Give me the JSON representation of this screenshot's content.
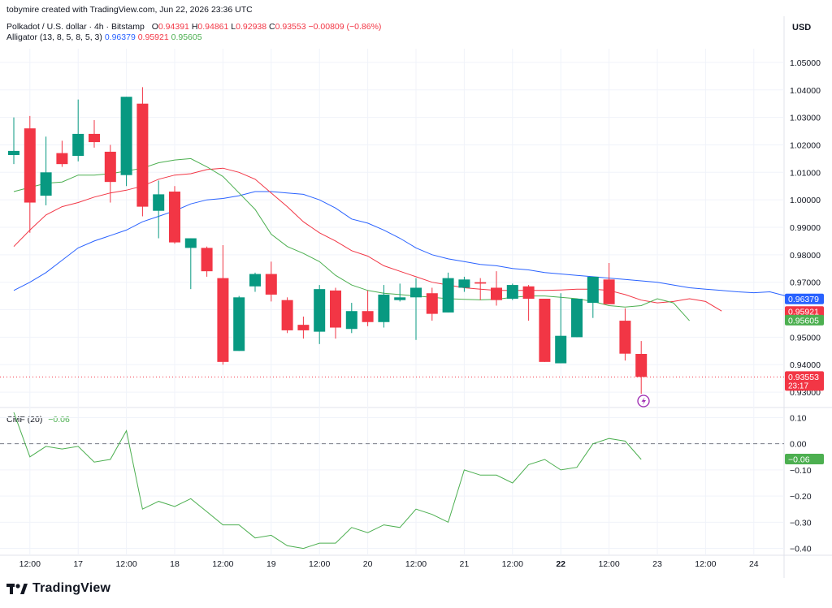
{
  "header": {
    "creator_line": "tobymire created with TradingView.com, Jun 22, 2026 23:36 UTC",
    "symbol_text": "Polkadot / U.S. dollar · 4h · Bitstamp",
    "ohlc": {
      "o_label": "O",
      "o": "0.94391",
      "h_label": "H",
      "h": "0.94861",
      "l_label": "L",
      "l": "0.92938",
      "c_label": "C",
      "c": "0.93553",
      "change": "−0.00809 (−0.86%)"
    },
    "alligator_label": "Alligator (13, 8, 5, 8, 5, 3)",
    "alligator_jaw": "0.96379",
    "alligator_teeth": "0.95921",
    "alligator_lips": "0.95605",
    "cmf_label": "CMF (20)",
    "cmf_value": "−0.06",
    "currency": "USD"
  },
  "brand": {
    "name": "TradingView"
  },
  "colors": {
    "up": "#089981",
    "down": "#f23645",
    "jaw": "#2962ff",
    "teeth": "#f23645",
    "lips": "#4caf50",
    "cmf": "#4caf50",
    "grid": "#f0f3fa",
    "text": "#131722"
  },
  "chart_data": [
    {
      "type": "candlestick",
      "title": "Polkadot / U.S. dollar · 4h · Bitstamp",
      "ylabel": "USD",
      "ylim": [
        0.925,
        1.055
      ],
      "y_ticks": [
        "1.05000",
        "1.04000",
        "1.03000",
        "1.02000",
        "1.01000",
        "1.00000",
        "0.99000",
        "0.98000",
        "0.97000",
        "0.96000",
        "0.95000",
        "0.94000",
        "0.93000"
      ],
      "x_ticks": [
        {
          "i": 1,
          "label": "12:00"
        },
        {
          "i": 4,
          "label": "17"
        },
        {
          "i": 7,
          "label": "12:00"
        },
        {
          "i": 10,
          "label": "18"
        },
        {
          "i": 13,
          "label": "12:00"
        },
        {
          "i": 16,
          "label": "19"
        },
        {
          "i": 19,
          "label": "12:00"
        },
        {
          "i": 22,
          "label": "20"
        },
        {
          "i": 25,
          "label": "12:00"
        },
        {
          "i": 28,
          "label": "21"
        },
        {
          "i": 31,
          "label": "12:00"
        },
        {
          "i": 34,
          "label": "22",
          "bold": true
        },
        {
          "i": 37,
          "label": "12:00"
        },
        {
          "i": 40,
          "label": "23"
        },
        {
          "i": 43,
          "label": "12:00"
        },
        {
          "i": 46,
          "label": "24"
        }
      ],
      "candles": [
        {
          "o": 1.0163,
          "h": 1.03,
          "l": 1.013,
          "c": 1.0178
        },
        {
          "o": 1.026,
          "h": 1.0305,
          "l": 0.988,
          "c": 0.999
        },
        {
          "o": 1.0015,
          "h": 1.023,
          "l": 0.998,
          "c": 1.01
        },
        {
          "o": 1.017,
          "h": 1.0215,
          "l": 1.012,
          "c": 1.013
        },
        {
          "o": 1.016,
          "h": 1.0365,
          "l": 1.014,
          "c": 1.024
        },
        {
          "o": 1.024,
          "h": 1.029,
          "l": 1.019,
          "c": 1.021
        },
        {
          "o": 1.0175,
          "h": 1.02,
          "l": 0.999,
          "c": 1.0065
        },
        {
          "o": 1.009,
          "h": 1.0375,
          "l": 1.005,
          "c": 1.0375
        },
        {
          "o": 1.035,
          "h": 1.041,
          "l": 0.994,
          "c": 0.9975
        },
        {
          "o": 0.996,
          "h": 1.007,
          "l": 0.986,
          "c": 1.002
        },
        {
          "o": 1.003,
          "h": 1.005,
          "l": 0.984,
          "c": 0.9845
        },
        {
          "o": 0.9825,
          "h": 0.986,
          "l": 0.9675,
          "c": 0.986
        },
        {
          "o": 0.9825,
          "h": 0.983,
          "l": 0.972,
          "c": 0.974
        },
        {
          "o": 0.9715,
          "h": 0.9835,
          "l": 0.94,
          "c": 0.941
        },
        {
          "o": 0.945,
          "h": 0.965,
          "l": 0.945,
          "c": 0.9645
        },
        {
          "o": 0.9685,
          "h": 0.9735,
          "l": 0.9665,
          "c": 0.973
        },
        {
          "o": 0.973,
          "h": 0.9775,
          "l": 0.963,
          "c": 0.9655
        },
        {
          "o": 0.9635,
          "h": 0.9645,
          "l": 0.9515,
          "c": 0.9525
        },
        {
          "o": 0.9545,
          "h": 0.9575,
          "l": 0.9495,
          "c": 0.9525
        },
        {
          "o": 0.952,
          "h": 0.969,
          "l": 0.9475,
          "c": 0.9675
        },
        {
          "o": 0.967,
          "h": 0.968,
          "l": 0.9495,
          "c": 0.9535
        },
        {
          "o": 0.953,
          "h": 0.9625,
          "l": 0.9515,
          "c": 0.9595
        },
        {
          "o": 0.9595,
          "h": 0.967,
          "l": 0.954,
          "c": 0.9555
        },
        {
          "o": 0.9555,
          "h": 0.969,
          "l": 0.9535,
          "c": 0.9655
        },
        {
          "o": 0.9635,
          "h": 0.9695,
          "l": 0.963,
          "c": 0.9645
        },
        {
          "o": 0.9645,
          "h": 0.9715,
          "l": 0.949,
          "c": 0.968
        },
        {
          "o": 0.966,
          "h": 0.968,
          "l": 0.956,
          "c": 0.9585
        },
        {
          "o": 0.959,
          "h": 0.9735,
          "l": 0.959,
          "c": 0.9715
        },
        {
          "o": 0.968,
          "h": 0.972,
          "l": 0.9665,
          "c": 0.971
        },
        {
          "o": 0.97,
          "h": 0.9715,
          "l": 0.9635,
          "c": 0.9695
        },
        {
          "o": 0.968,
          "h": 0.974,
          "l": 0.9615,
          "c": 0.9635
        },
        {
          "o": 0.964,
          "h": 0.9695,
          "l": 0.9635,
          "c": 0.969
        },
        {
          "o": 0.9685,
          "h": 0.969,
          "l": 0.956,
          "c": 0.964
        },
        {
          "o": 0.964,
          "h": 0.964,
          "l": 0.941,
          "c": 0.941
        },
        {
          "o": 0.9405,
          "h": 0.966,
          "l": 0.9405,
          "c": 0.9505
        },
        {
          "o": 0.95,
          "h": 0.964,
          "l": 0.95,
          "c": 0.964
        },
        {
          "o": 0.9625,
          "h": 0.972,
          "l": 0.957,
          "c": 0.972
        },
        {
          "o": 0.971,
          "h": 0.977,
          "l": 0.962,
          "c": 0.962
        },
        {
          "o": 0.956,
          "h": 0.9605,
          "l": 0.9415,
          "c": 0.944
        },
        {
          "o": 0.94391,
          "h": 0.94861,
          "l": 0.92938,
          "c": 0.93553
        }
      ],
      "alligator": {
        "jaw": {
          "name": "Jaw",
          "start": 0,
          "values": [
            0.967,
            0.97,
            0.9735,
            0.978,
            0.9825,
            0.985,
            0.987,
            0.989,
            0.992,
            0.994,
            0.996,
            0.9985,
            1.0,
            1.0005,
            1.0015,
            1.003,
            1.003,
            1.0025,
            1.002,
            1.0,
            0.997,
            0.993,
            0.9915,
            0.989,
            0.986,
            0.9825,
            0.98,
            0.9785,
            0.9775,
            0.9765,
            0.976,
            0.975,
            0.9745,
            0.9735,
            0.973,
            0.9725,
            0.972,
            0.9715,
            0.971,
            0.9705,
            0.97,
            0.969,
            0.968,
            0.9675,
            0.967,
            0.9665,
            0.9662,
            0.9665,
            0.965
          ]
        },
        "teeth": {
          "name": "Teeth",
          "start": 0,
          "values": [
            0.983,
            0.989,
            0.9945,
            0.9975,
            0.999,
            1.001,
            1.0025,
            1.0035,
            1.005,
            1.0075,
            1.009,
            1.0095,
            1.011,
            1.0115,
            1.01,
            1.0075,
            1.0025,
            0.9975,
            0.992,
            0.988,
            0.985,
            0.9815,
            0.9795,
            0.976,
            0.974,
            0.972,
            0.97,
            0.969,
            0.968,
            0.9675,
            0.967,
            0.967,
            0.967,
            0.967,
            0.9672,
            0.9675,
            0.9675,
            0.967,
            0.9655,
            0.9635,
            0.9625,
            0.963,
            0.964,
            0.963,
            0.9595
          ]
        },
        "lips": {
          "name": "Lips",
          "start": 0,
          "values": [
            1.003,
            1.0045,
            1.006,
            1.0065,
            1.009,
            1.009,
            1.0095,
            1.0105,
            1.0115,
            1.0135,
            1.0145,
            1.015,
            1.012,
            1.0085,
            1.0025,
            0.9965,
            0.9875,
            0.983,
            0.9805,
            0.9775,
            0.9725,
            0.969,
            0.967,
            0.966,
            0.9655,
            0.965,
            0.9645,
            0.964,
            0.9638,
            0.9636,
            0.9638,
            0.9645,
            0.965,
            0.965,
            0.9645,
            0.964,
            0.963,
            0.9615,
            0.961,
            0.9615,
            0.964,
            0.9625,
            0.956
          ]
        }
      },
      "current_price": {
        "value": "0.93553",
        "countdown": "23:17"
      }
    },
    {
      "type": "line",
      "title": "CMF (20)",
      "ylim": [
        -0.42,
        0.12
      ],
      "y_ticks": [
        "0.10",
        "0.00",
        "−0.10",
        "−0.20",
        "−0.30",
        "−0.40"
      ],
      "series": [
        {
          "name": "CMF (20)",
          "values": [
            0.12,
            -0.05,
            -0.01,
            -0.02,
            -0.01,
            -0.07,
            -0.06,
            0.05,
            -0.25,
            -0.22,
            -0.24,
            -0.21,
            -0.26,
            -0.31,
            -0.31,
            -0.36,
            -0.35,
            -0.39,
            -0.4,
            -0.38,
            -0.38,
            -0.32,
            -0.34,
            -0.31,
            -0.32,
            -0.25,
            -0.27,
            -0.3,
            -0.1,
            -0.12,
            -0.12,
            -0.15,
            -0.08,
            -0.06,
            -0.1,
            -0.09,
            0.0,
            0.02,
            0.01,
            -0.06
          ]
        }
      ],
      "zero_line": 0.0
    }
  ]
}
